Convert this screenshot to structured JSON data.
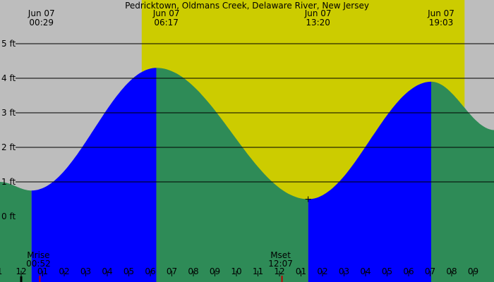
{
  "chart_data": {
    "type": "area",
    "title": "Pedricktown, Oldmans Creek, Delaware River, New Jersey",
    "xlabel": "",
    "ylabel": "",
    "x_unit": "hours",
    "ylim": [
      -1.0,
      5.5
    ],
    "y_ticks": [
      {
        "value": 0,
        "label": "0 ft"
      },
      {
        "value": 1,
        "label": "1 ft"
      },
      {
        "value": 2,
        "label": "2 ft"
      },
      {
        "value": 3,
        "label": "3 ft"
      },
      {
        "value": 4,
        "label": "4 ft"
      },
      {
        "value": 5,
        "label": "5 ft"
      }
    ],
    "grid": true,
    "colors": {
      "background": "#bdbdbd",
      "daylight": "#cccc00",
      "falling": "#2e8b57",
      "rising": "#0000ff",
      "grid": "#000000",
      "moon_tick": "#c00000"
    },
    "day_hours": [
      5.6,
      20.6
    ],
    "events": [
      {
        "label": "Jun 07",
        "time": "00:29",
        "hour": 0.483,
        "height_ft": 0.75,
        "kind": "low"
      },
      {
        "label": "Jun 07",
        "time": "06:17",
        "hour": 6.283,
        "height_ft": 4.3,
        "kind": "high"
      },
      {
        "label": "Jun 07",
        "time": "13:20",
        "hour": 13.333,
        "height_ft": 0.5,
        "kind": "low"
      },
      {
        "label": "Jun 07",
        "time": "19:03",
        "hour": 19.05,
        "height_ft": 3.9,
        "kind": "high"
      }
    ],
    "edge_points": [
      {
        "hour": -1.0,
        "height_ft": 1.0
      },
      {
        "hour": 22.0,
        "height_ft": 2.5
      }
    ],
    "x_ticks": [
      {
        "hour": -1,
        "label": "1"
      },
      {
        "hour": 0,
        "label": "12"
      },
      {
        "hour": 1,
        "label": "01"
      },
      {
        "hour": 2,
        "label": "02"
      },
      {
        "hour": 3,
        "label": "03"
      },
      {
        "hour": 4,
        "label": "04"
      },
      {
        "hour": 5,
        "label": "05"
      },
      {
        "hour": 6,
        "label": "06"
      },
      {
        "hour": 7,
        "label": "07"
      },
      {
        "hour": 8,
        "label": "08"
      },
      {
        "hour": 9,
        "label": "09"
      },
      {
        "hour": 10,
        "label": "10"
      },
      {
        "hour": 11,
        "label": "11"
      },
      {
        "hour": 12,
        "label": "12"
      },
      {
        "hour": 13,
        "label": "01"
      },
      {
        "hour": 14,
        "label": "02"
      },
      {
        "hour": 15,
        "label": "03"
      },
      {
        "hour": 16,
        "label": "04"
      },
      {
        "hour": 17,
        "label": "05"
      },
      {
        "hour": 18,
        "label": "06"
      },
      {
        "hour": 19,
        "label": "07"
      },
      {
        "hour": 20,
        "label": "08"
      },
      {
        "hour": 21,
        "label": "09"
      }
    ],
    "moon_events": [
      {
        "label": "Mrise",
        "time": "00:52",
        "hour": 0.867
      },
      {
        "label": "Mset",
        "time": "12:07",
        "hour": 12.117
      }
    ],
    "marker_hour": 13.333
  }
}
